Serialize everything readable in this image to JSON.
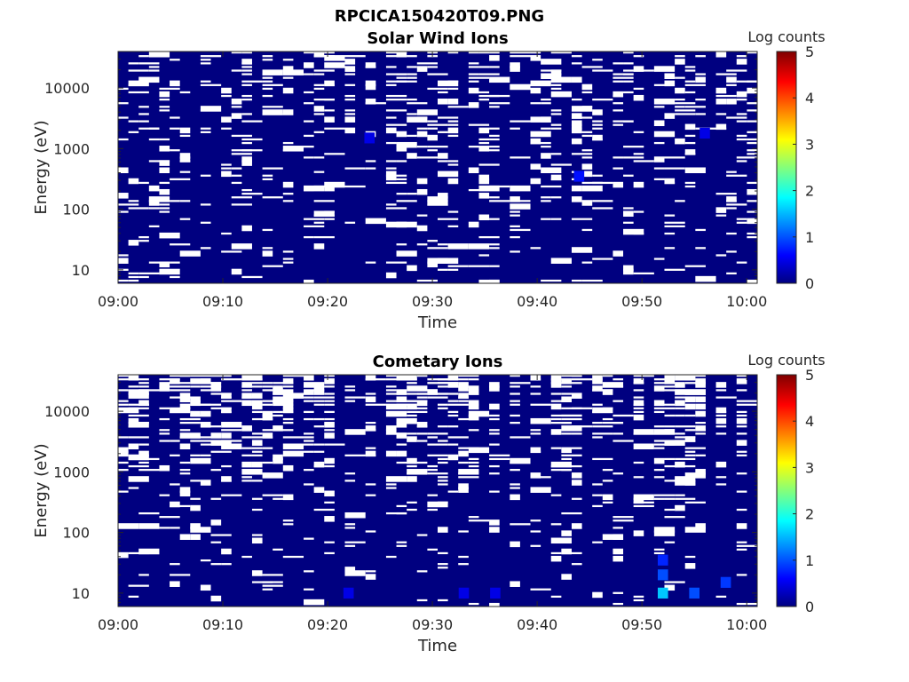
{
  "figure_title": "RPCICA150420T09.PNG",
  "chart_data": [
    {
      "type": "heatmap",
      "title": "Solar Wind Ions",
      "xlabel": "Time",
      "ylabel": "Energy (eV)",
      "x_ticks": [
        "09:00",
        "09:10",
        "09:20",
        "09:30",
        "09:40",
        "09:50",
        "10:00"
      ],
      "x_range": [
        "09:00",
        "10:01"
      ],
      "y_scale": "log",
      "y_ticks": [
        "10",
        "100",
        "1000",
        "10000"
      ],
      "y_range": [
        6,
        40000
      ],
      "colorbar": {
        "label": "Log counts",
        "ticks": [
          "0",
          "1",
          "2",
          "3",
          "4",
          "5"
        ],
        "range": [
          0,
          5
        ],
        "colormap": "jet"
      },
      "background_value_log_counts": 0,
      "empty_bins": "white",
      "notable_cells": [
        {
          "time": "09:24",
          "energy_eV": 1500,
          "log_counts": 0.5
        },
        {
          "time": "09:44",
          "energy_eV": 350,
          "log_counts": 0.7
        },
        {
          "time": "09:56",
          "energy_eV": 1800,
          "log_counts": 0.5
        }
      ]
    },
    {
      "type": "heatmap",
      "title": "Cometary Ions",
      "xlabel": "Time",
      "ylabel": "Energy (eV)",
      "x_ticks": [
        "09:00",
        "09:10",
        "09:20",
        "09:30",
        "09:40",
        "09:50",
        "10:00"
      ],
      "x_range": [
        "09:00",
        "10:01"
      ],
      "y_scale": "log",
      "y_ticks": [
        "10",
        "100",
        "1000",
        "10000"
      ],
      "y_range": [
        6,
        40000
      ],
      "colorbar": {
        "label": "Log counts",
        "ticks": [
          "0",
          "1",
          "2",
          "3",
          "4",
          "5"
        ],
        "range": [
          0,
          5
        ],
        "colormap": "jet"
      },
      "background_value_log_counts": 0,
      "empty_bins": "white",
      "notable_cells": [
        {
          "time": "09:52",
          "energy_eV": 10,
          "log_counts": 1.6
        },
        {
          "time": "09:52",
          "energy_eV": 20,
          "log_counts": 1.0
        },
        {
          "time": "09:52",
          "energy_eV": 35,
          "log_counts": 0.8
        },
        {
          "time": "09:55",
          "energy_eV": 10,
          "log_counts": 1.0
        },
        {
          "time": "09:58",
          "energy_eV": 15,
          "log_counts": 0.9
        },
        {
          "time": "09:22",
          "energy_eV": 10,
          "log_counts": 0.5
        },
        {
          "time": "09:33",
          "energy_eV": 10,
          "log_counts": 0.5
        },
        {
          "time": "09:36",
          "energy_eV": 10,
          "log_counts": 0.5
        }
      ]
    }
  ]
}
